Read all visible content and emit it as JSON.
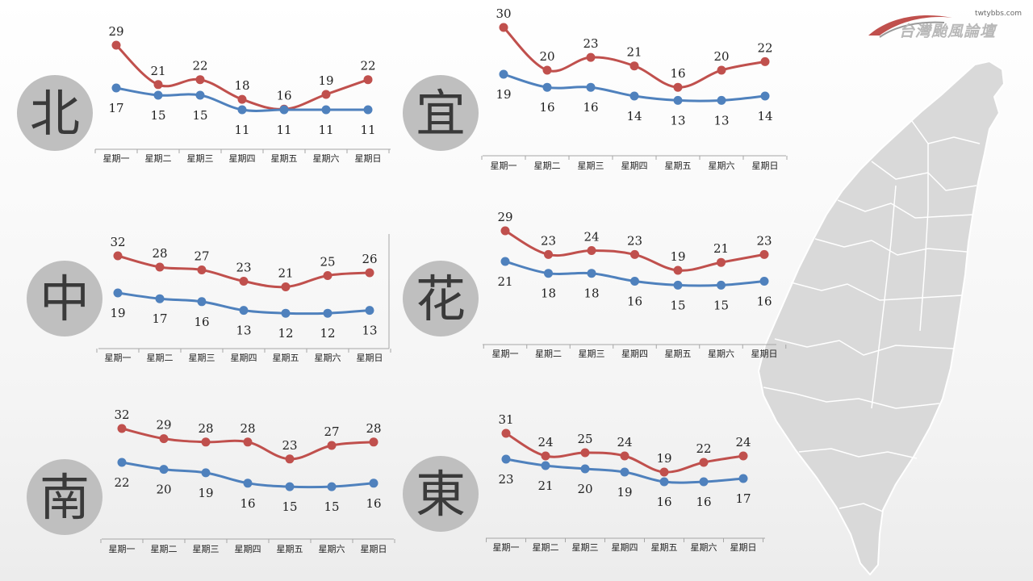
{
  "logo": {
    "site": "twtybbs.com",
    "name": "台灣颱風論壇"
  },
  "colors": {
    "high": "#c0504d",
    "low": "#4f81bd",
    "badge": "#bfbfbf",
    "map": "#d9d9d9"
  },
  "map_icon": "taiwan-map",
  "chart_data": [
    {
      "type": "line",
      "region": "北",
      "categories": [
        "星期一",
        "星期二",
        "星期三",
        "星期四",
        "星期五",
        "星期六",
        "星期日"
      ],
      "series": [
        {
          "values": [
            29,
            21,
            22,
            18,
            16,
            19,
            22
          ]
        },
        {
          "values": [
            17,
            15,
            15,
            11,
            11,
            11,
            11
          ]
        }
      ]
    },
    {
      "type": "line",
      "region": "宜",
      "categories": [
        "星期一",
        "星期二",
        "星期三",
        "星期四",
        "星期五",
        "星期六",
        "星期日"
      ],
      "series": [
        {
          "values": [
            30,
            20,
            23,
            21,
            16,
            20,
            22
          ]
        },
        {
          "values": [
            19,
            16,
            16,
            14,
            13,
            13,
            14
          ]
        }
      ]
    },
    {
      "type": "line",
      "region": "中",
      "categories": [
        "星期一",
        "星期二",
        "星期三",
        "星期四",
        "星期五",
        "星期六",
        "星期日"
      ],
      "series": [
        {
          "values": [
            32,
            28,
            27,
            23,
            21,
            25,
            26
          ]
        },
        {
          "values": [
            19,
            17,
            16,
            13,
            12,
            12,
            13
          ]
        }
      ]
    },
    {
      "type": "line",
      "region": "花",
      "categories": [
        "星期一",
        "星期二",
        "星期三",
        "星期四",
        "星期五",
        "星期六",
        "星期日"
      ],
      "series": [
        {
          "values": [
            29,
            23,
            24,
            23,
            19,
            21,
            23
          ]
        },
        {
          "values": [
            21,
            18,
            18,
            16,
            15,
            15,
            16
          ]
        }
      ]
    },
    {
      "type": "line",
      "region": "南",
      "categories": [
        "星期一",
        "星期二",
        "星期三",
        "星期四",
        "星期五",
        "星期六",
        "星期日"
      ],
      "series": [
        {
          "values": [
            32,
            29,
            28,
            28,
            23,
            27,
            28
          ]
        },
        {
          "values": [
            22,
            20,
            19,
            16,
            15,
            15,
            16
          ]
        }
      ]
    },
    {
      "type": "line",
      "region": "東",
      "categories": [
        "星期一",
        "星期二",
        "星期三",
        "星期四",
        "星期五",
        "星期六",
        "星期日"
      ],
      "series": [
        {
          "values": [
            31,
            24,
            25,
            24,
            19,
            22,
            24
          ]
        },
        {
          "values": [
            23,
            21,
            20,
            19,
            16,
            16,
            17
          ]
        }
      ]
    }
  ]
}
